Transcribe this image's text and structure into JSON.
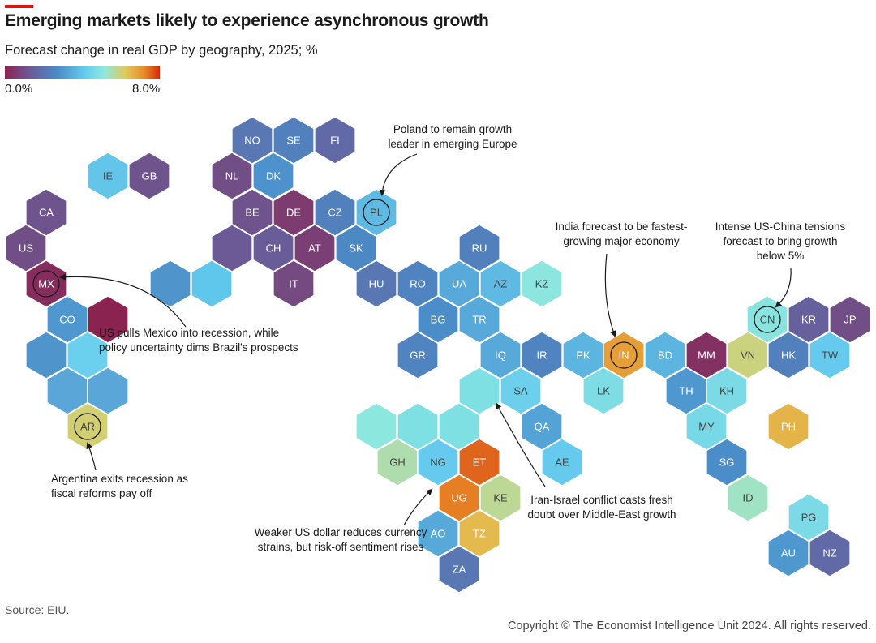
{
  "header": {
    "title": "Emerging markets likely to experience asynchronous growth",
    "subtitle": "Forecast change in real GDP by geography, 2025; %"
  },
  "legend": {
    "min_label": "0.0%",
    "max_label": "8.0%",
    "min": 0,
    "max": 8
  },
  "footer": {
    "source": "Source: EIU.",
    "copyright": "Copyright © The Economist Intelligence Unit 2024. All rights reserved."
  },
  "colors": {
    "scale": [
      "#8b2350",
      "#6b5a96",
      "#4a8cc8",
      "#66ccee",
      "#8fe8de",
      "#e2c95a",
      "#e88a28",
      "#d42a08"
    ],
    "text_on_light": "#444444",
    "text_on_dark": "#ffffff"
  },
  "chart_data": {
    "type": "heatmap",
    "title": "Emerging markets likely to experience asynchronous growth",
    "subtitle": "Forecast change in real GDP by geography, 2025; %",
    "value_range": [
      0,
      8
    ],
    "geographies": [
      {
        "code": "NO",
        "value": 1.8
      },
      {
        "code": "SE",
        "value": 2.0
      },
      {
        "code": "FI",
        "value": 1.5
      },
      {
        "code": "IE",
        "value": 3.3
      },
      {
        "code": "GB",
        "value": 1.0
      },
      {
        "code": "NL",
        "value": 0.9
      },
      {
        "code": "DK",
        "value": 2.4
      },
      {
        "code": "CA",
        "value": 1.0
      },
      {
        "code": "BE",
        "value": 1.0
      },
      {
        "code": "DE",
        "value": 0.5
      },
      {
        "code": "CZ",
        "value": 2.0
      },
      {
        "code": "PL",
        "value": 3.1,
        "highlight": true
      },
      {
        "code": "US",
        "value": 0.9
      },
      {
        "code": "CH",
        "value": 1.2
      },
      {
        "code": "AT",
        "value": 0.6
      },
      {
        "code": "SK",
        "value": 2.2
      },
      {
        "code": "RU",
        "value": 2.0
      },
      {
        "code": "MX",
        "value": 0.2,
        "highlight": true
      },
      {
        "code": "IT",
        "value": 0.8
      },
      {
        "code": "HU",
        "value": 1.8
      },
      {
        "code": "RO",
        "value": 2.1
      },
      {
        "code": "UA",
        "value": 2.8
      },
      {
        "code": "AZ",
        "value": 3.1
      },
      {
        "code": "KZ",
        "value": 4.5
      },
      {
        "code": "CO",
        "value": 2.5
      },
      {
        "code": "BG",
        "value": 2.3
      },
      {
        "code": "TR",
        "value": 2.8
      },
      {
        "code": "CN",
        "value": 4.4,
        "highlight": true
      },
      {
        "code": "KR",
        "value": 1.3
      },
      {
        "code": "JP",
        "value": 0.9
      },
      {
        "code": "GR",
        "value": 2.1
      },
      {
        "code": "IQ",
        "value": 2.8
      },
      {
        "code": "IR",
        "value": 2.1
      },
      {
        "code": "PK",
        "value": 3.0
      },
      {
        "code": "IN",
        "value": 6.5,
        "highlight": true
      },
      {
        "code": "BD",
        "value": 3.0
      },
      {
        "code": "MM",
        "value": 0.3
      },
      {
        "code": "VN",
        "value": 5.4
      },
      {
        "code": "HK",
        "value": 2.0
      },
      {
        "code": "TW",
        "value": 3.4
      },
      {
        "code": "LK",
        "value": 4.1
      },
      {
        "code": "SA",
        "value": 3.6
      },
      {
        "code": "TH",
        "value": 2.5
      },
      {
        "code": "KH",
        "value": 4.0
      },
      {
        "code": "AR",
        "value": 5.5,
        "highlight": true
      },
      {
        "code": "QA",
        "value": 2.7
      },
      {
        "code": "MY",
        "value": 3.9
      },
      {
        "code": "PH",
        "value": 6.1
      },
      {
        "code": "GH",
        "value": 5.0
      },
      {
        "code": "NG",
        "value": 3.4
      },
      {
        "code": "ET",
        "value": 7.3
      },
      {
        "code": "AE",
        "value": 3.4
      },
      {
        "code": "SG",
        "value": 2.3
      },
      {
        "code": "UG",
        "value": 7.0
      },
      {
        "code": "KE",
        "value": 5.2
      },
      {
        "code": "ID",
        "value": 4.8
      },
      {
        "code": "PG",
        "value": 4.0
      },
      {
        "code": "AO",
        "value": 2.8
      },
      {
        "code": "TZ",
        "value": 6.0
      },
      {
        "code": "AU",
        "value": 2.5
      },
      {
        "code": "NZ",
        "value": 1.5
      },
      {
        "code": "ZA",
        "value": 1.8
      }
    ],
    "annotations": [
      {
        "lines": [
          "Poland to remain growth",
          "leader in emerging Europe"
        ],
        "target": "PL"
      },
      {
        "lines": [
          "India forecast to be fastest-",
          "growing major economy"
        ],
        "target": "IN"
      },
      {
        "lines": [
          "Intense US-China tensions",
          "forecast to bring growth",
          "below 5%"
        ],
        "target": "CN"
      },
      {
        "lines": [
          "US pulls Mexico into recession, while",
          "policy uncertainty dims Brazil's prospects"
        ],
        "target": "MX"
      },
      {
        "lines": [
          "Argentina exits recession as",
          "fiscal reforms pay off"
        ],
        "target": "AR"
      },
      {
        "lines": [
          "Iran-Israel conflict casts fresh",
          "doubt over Middle-East growth"
        ],
        "target": "SA"
      },
      {
        "lines": [
          "Weaker US dollar reduces currency",
          "strains, but risk-off sentiment rises"
        ],
        "target": "UG"
      }
    ]
  }
}
